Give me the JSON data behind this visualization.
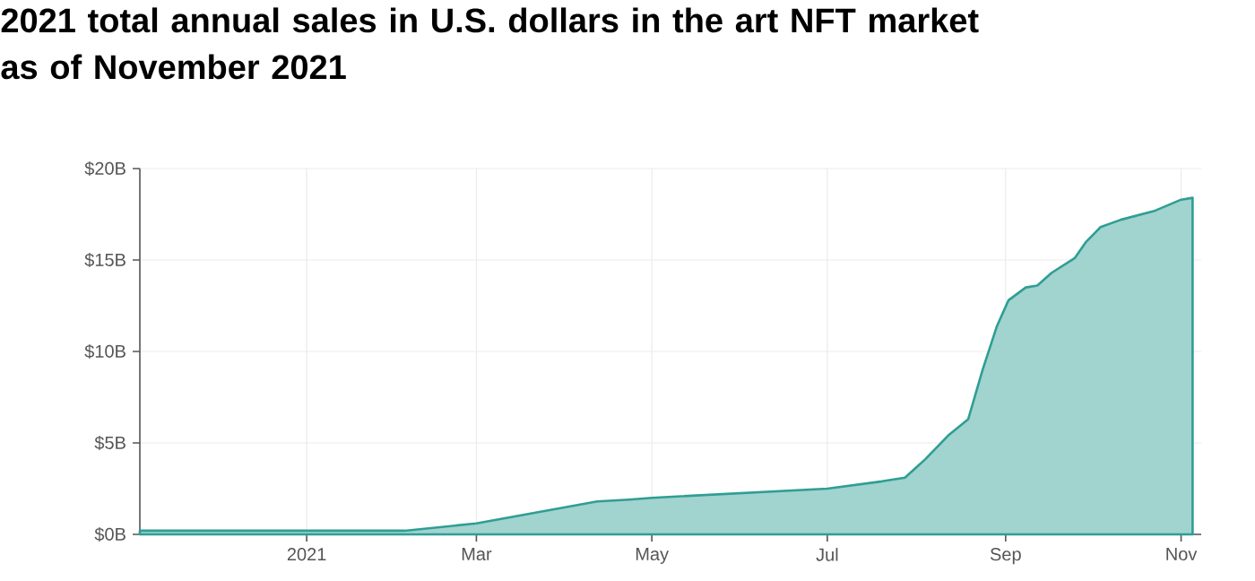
{
  "chart_data": {
    "type": "area",
    "title": "2021 total annual sales in U.S. dollars in the art NFT market as of November 2021",
    "x": [
      "2020-11-04",
      "2021-02-04",
      "2021-03-01",
      "2021-04-12",
      "2021-04-23",
      "2021-05-01",
      "2021-07-01",
      "2021-07-20",
      "2021-07-28",
      "2021-08-04",
      "2021-08-12",
      "2021-08-19",
      "2021-08-24",
      "2021-08-29",
      "2021-09-02",
      "2021-09-08",
      "2021-09-12",
      "2021-09-17",
      "2021-09-25",
      "2021-09-29",
      "2021-10-04",
      "2021-10-11",
      "2021-10-23",
      "2021-11-01",
      "2021-11-05"
    ],
    "series": [
      {
        "color": "#2f9e94",
        "values": [
          0.2,
          0.2,
          0.6,
          1.8,
          1.9,
          2.0,
          2.5,
          2.9,
          3.1,
          4.1,
          5.4,
          6.3,
          9.0,
          11.4,
          12.8,
          13.5,
          13.6,
          14.3,
          15.1,
          16.0,
          16.8,
          17.2,
          17.7,
          18.3,
          18.4
        ]
      }
    ],
    "xlim": [
      "2020-11-04",
      "2021-11-08"
    ],
    "xticks": [
      {
        "value": "2021-01-01",
        "label": "2021"
      },
      {
        "value": "2021-03-01",
        "label": "Mar"
      },
      {
        "value": "2021-05-01",
        "label": "May"
      },
      {
        "value": "2021-07-01",
        "label": "Jul"
      },
      {
        "value": "2021-09-01",
        "label": "Sep"
      },
      {
        "value": "2021-11-01",
        "label": "Nov"
      }
    ],
    "ylim": [
      0,
      20
    ],
    "yticks": [
      {
        "value": 0,
        "label": "$0B"
      },
      {
        "value": 5,
        "label": "$5B"
      },
      {
        "value": 10,
        "label": "$10B"
      },
      {
        "value": 15,
        "label": "$15B"
      },
      {
        "value": 20,
        "label": "$20B"
      }
    ],
    "grid": true
  }
}
